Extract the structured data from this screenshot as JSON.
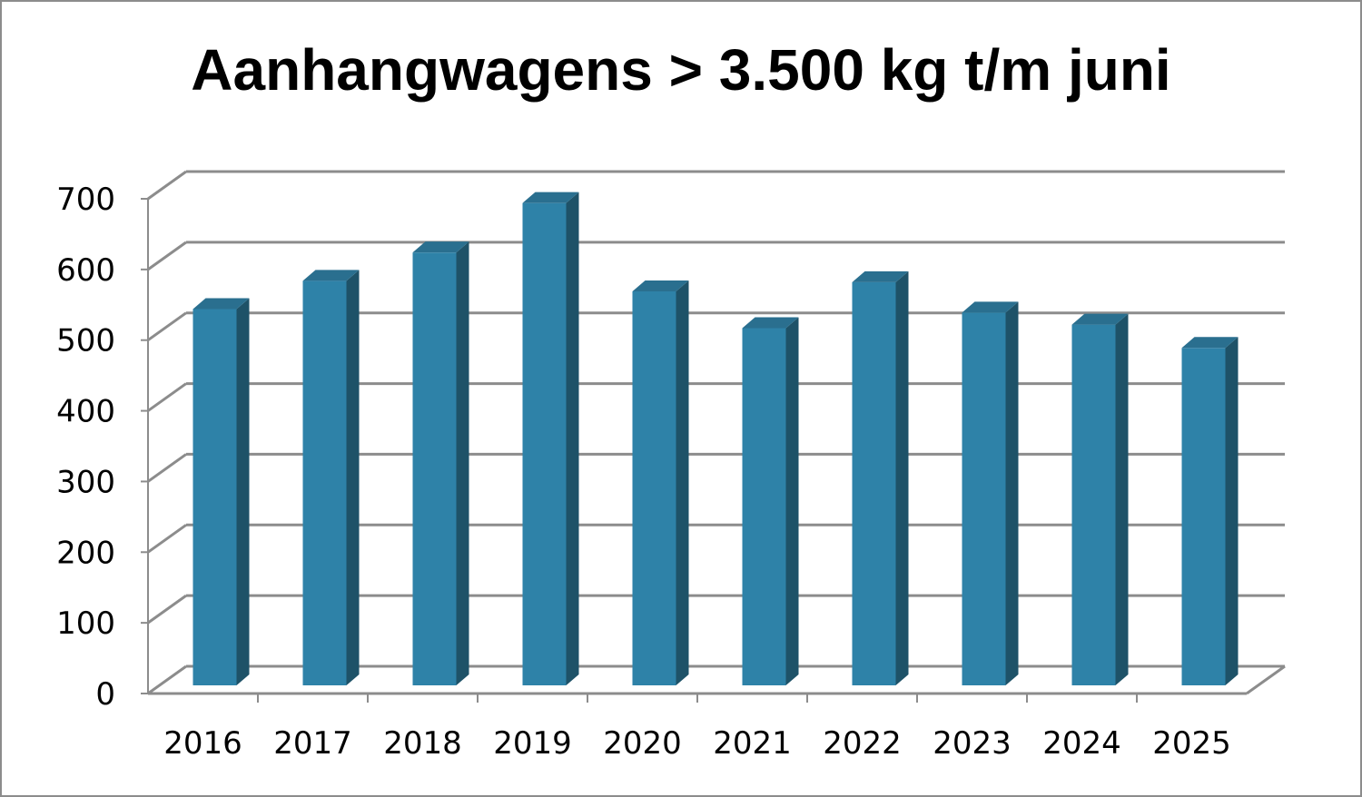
{
  "chart_data": {
    "type": "bar",
    "title": "Aanhangwagens > 3.500 kg t/m juni",
    "categories": [
      "2016",
      "2017",
      "2018",
      "2019",
      "2020",
      "2021",
      "2022",
      "2023",
      "2024",
      "2025"
    ],
    "values": [
      535,
      575,
      615,
      685,
      560,
      508,
      573,
      530,
      513,
      480
    ],
    "ylim": [
      0,
      700
    ],
    "yticks": [
      "0",
      "100",
      "200",
      "300",
      "400",
      "500",
      "600",
      "700"
    ],
    "grid": true,
    "three_d": true,
    "colors": {
      "bar_front": "#2e82a8",
      "bar_side": "#1e5268",
      "bar_top": "#2a6f8f",
      "grid": "#8c8c8c"
    }
  }
}
